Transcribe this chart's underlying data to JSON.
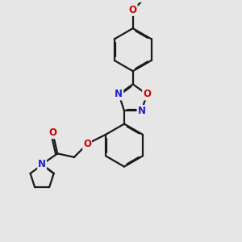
{
  "bg_color": "#e6e6e6",
  "bond_color": "#1a1a1a",
  "N_color": "#2020cc",
  "O_color": "#cc0000",
  "lw": 1.6,
  "dbo": 0.07,
  "fs": 8.5,
  "xlim": [
    0,
    10
  ],
  "ylim": [
    0,
    10
  ]
}
